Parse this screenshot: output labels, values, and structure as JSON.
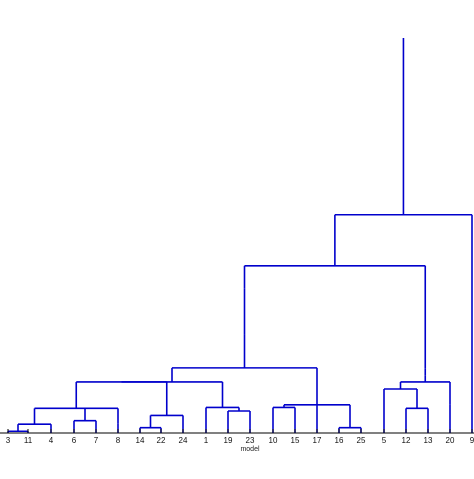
{
  "chart_data": {
    "type": "dendrogram",
    "title": "",
    "xlabel": "model",
    "ylabel": "",
    "grid": false,
    "line_color": "#0000cc",
    "leaves": [
      "3",
      "11",
      "4",
      "6",
      "7",
      "8",
      "14",
      "22",
      "24",
      "1",
      "19",
      "23",
      "10",
      "15",
      "17",
      "16",
      "25",
      "5",
      "12",
      "13",
      "20",
      "9"
    ],
    "node_heights": {
      "a": 0.1,
      "b": 0.5,
      "c": 0.7,
      "d": 0.55,
      "e": 1.4,
      "f": 2.9,
      "g": 0.3,
      "h": 1.0,
      "i": 1.25,
      "j": 1.45,
      "k": 2.9,
      "l": 0.3,
      "m": 1.45,
      "n": 1.6,
      "o": 3.7,
      "p": 5.6,
      "q": 8.2,
      "r": 1.4,
      "s": 2.5,
      "t": 1.6,
      "u": 2.9,
      "v": 3.25,
      "w": 3.65,
      "x": 9.5,
      "y": 12.4,
      "z": 17.5
    }
  }
}
